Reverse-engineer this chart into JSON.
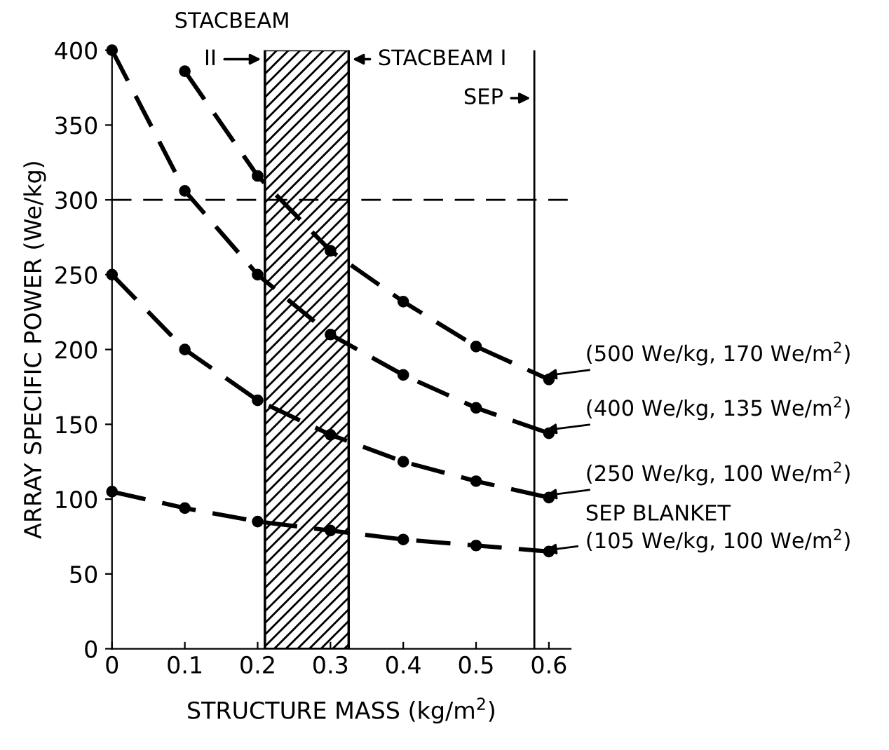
{
  "chart_data": {
    "type": "line",
    "xlabel": "STRUCTURE MASS (kg/m$^{2}$)",
    "ylabel": "ARRAY SPECIFIC POWER (We/kg)",
    "x": [
      0,
      0.1,
      0.2,
      0.3,
      0.4,
      0.5,
      0.6
    ],
    "series": [
      {
        "name": "(500 We/kg, 170 We/m$^{2}$)",
        "color": "#000000",
        "values": [
          null,
          386,
          316,
          266,
          232,
          202,
          180
        ]
      },
      {
        "name": "(400 We/kg, 135 We/m$^{2}$)",
        "color": "#000000",
        "values": [
          400,
          306,
          250,
          210,
          183,
          161,
          144
        ]
      },
      {
        "name": "(250 We/kg, 100 We/m$^{2}$)",
        "color": "#000000",
        "values": [
          250,
          200,
          166,
          143,
          125,
          112,
          101
        ]
      },
      {
        "name": "SEP BLANKET\n(105 We/kg, 100 We/m$^{2}$)",
        "color": "#000000",
        "values": [
          105,
          94,
          85,
          79,
          73,
          69,
          65
        ]
      }
    ],
    "xlim": [
      0,
      0.63
    ],
    "ylim": [
      0,
      400
    ],
    "xticks": [
      0,
      0.1,
      0.2,
      0.3,
      0.4,
      0.5,
      0.6
    ],
    "yticks": [
      0,
      50,
      100,
      150,
      200,
      250,
      300,
      350,
      400
    ],
    "ref_lines": [
      {
        "axis": "y",
        "value": 300,
        "line_style": "dashed"
      },
      {
        "axis": "x",
        "value": 0.21,
        "label": "STACBEAM II",
        "line_style": "solid"
      },
      {
        "axis": "x",
        "value": 0.325,
        "label": "STACBEAM I",
        "line_style": "solid"
      },
      {
        "axis": "x",
        "value": 0.58,
        "label": "SEP",
        "line_style": "solid"
      }
    ],
    "bands": [
      {
        "axis": "x",
        "from": 0.21,
        "to": 0.325
      }
    ],
    "marker": "circle",
    "line_style": "dashed",
    "grid": false,
    "legend": false
  }
}
